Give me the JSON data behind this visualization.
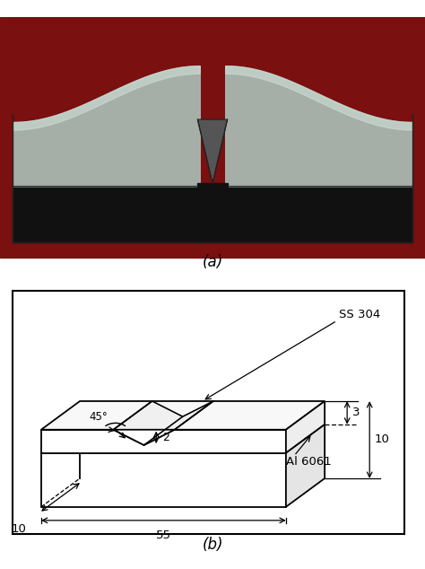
{
  "fig_width": 4.74,
  "fig_height": 6.34,
  "dpi": 100,
  "label_a": "(a)",
  "label_b": "(b)",
  "bg_color": "#ffffff",
  "line_color": "#000000",
  "photo_bg": "#8b1a1a",
  "specimen_metal_color": "#a8b8b0",
  "specimen_dark_color": "#111111",
  "annotations": {
    "angle": "45°",
    "notch_depth": "2",
    "length": "55",
    "width_bottom": "10",
    "thickness_ss": "3",
    "thickness_total": "10",
    "label_ss": "SS 304",
    "label_al": "Al 6061"
  }
}
